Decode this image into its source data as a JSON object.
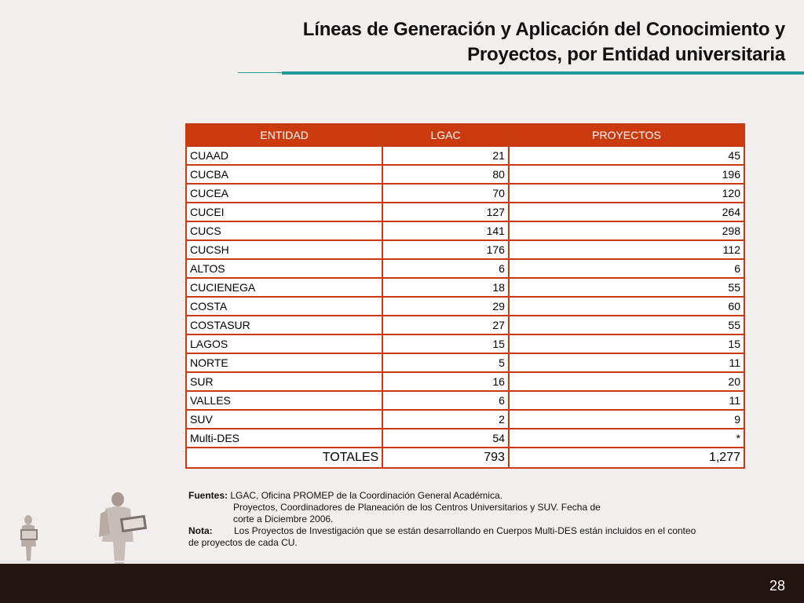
{
  "title": {
    "line1": "Líneas de Generación y Aplicación del Conocimiento y",
    "line2": "Proyectos, por Entidad universitaria"
  },
  "table": {
    "headers": [
      "ENTIDAD",
      "LGAC",
      "PROYECTOS"
    ],
    "rows": [
      {
        "entidad": "CUAAD",
        "lgac": "21",
        "proyectos": "45"
      },
      {
        "entidad": "CUCBA",
        "lgac": "80",
        "proyectos": "196"
      },
      {
        "entidad": "CUCEA",
        "lgac": "70",
        "proyectos": "120"
      },
      {
        "entidad": "CUCEI",
        "lgac": "127",
        "proyectos": "264"
      },
      {
        "entidad": "CUCS",
        "lgac": "141",
        "proyectos": "298"
      },
      {
        "entidad": "CUCSH",
        "lgac": "176",
        "proyectos": "112"
      },
      {
        "entidad": "ALTOS",
        "lgac": "6",
        "proyectos": "6"
      },
      {
        "entidad": "CUCIENEGA",
        "lgac": "18",
        "proyectos": "55"
      },
      {
        "entidad": "COSTA",
        "lgac": "29",
        "proyectos": "60"
      },
      {
        "entidad": "COSTASUR",
        "lgac": "27",
        "proyectos": "55"
      },
      {
        "entidad": "LAGOS",
        "lgac": "15",
        "proyectos": "15"
      },
      {
        "entidad": "NORTE",
        "lgac": "5",
        "proyectos": "11"
      },
      {
        "entidad": "SUR",
        "lgac": "16",
        "proyectos": "20"
      },
      {
        "entidad": "VALLES",
        "lgac": "6",
        "proyectos": "11"
      },
      {
        "entidad": "SUV",
        "lgac": "2",
        "proyectos": "9"
      },
      {
        "entidad": "Multi-DES",
        "lgac": "54",
        "proyectos": "*"
      }
    ],
    "totals": {
      "label": "TOTALES",
      "lgac": "793",
      "proyectos": "1,277"
    }
  },
  "notes": {
    "fuentes_label": "Fuentes:",
    "fuentes_line1": "LGAC, Oficina PROMEP de la Coordinación General Académica.",
    "fuentes_line2": "Proyectos, Coordinadores de Planeación de los Centros Universitarios y SUV. Fecha de",
    "fuentes_line3": "corte a Diciembre 2006.",
    "nota_label": "Nota:",
    "nota_line1": "Los Proyectos de Investigación  que se están desarrollando en Cuerpos Multi-DES están incluidos en el conteo",
    "nota_line2": "de proyectos de cada CU."
  },
  "page_number": "28",
  "colors": {
    "table_header": "#cc3a0f",
    "table_border": "#c83a12",
    "accent_rule": "#1f9a96",
    "footer": "#231410",
    "background": "#f3eeee"
  },
  "illustration": "people-with-laptops-illustration"
}
